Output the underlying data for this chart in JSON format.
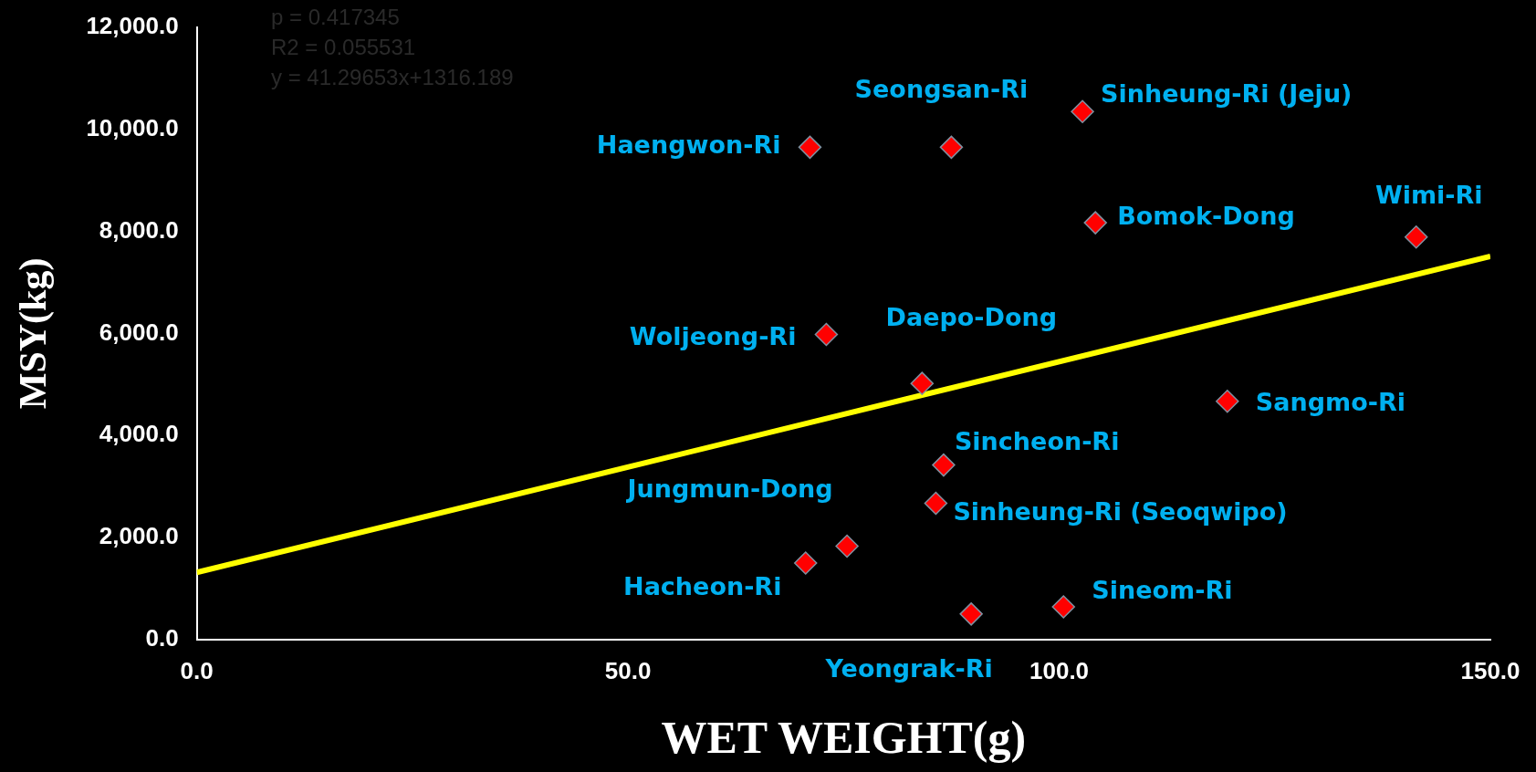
{
  "chart_data": {
    "type": "scatter",
    "xlabel": "WET WEIGHT(g)",
    "ylabel": "MSY(kg)",
    "xlim": [
      0,
      150
    ],
    "ylim": [
      0,
      12000
    ],
    "xticks": [
      {
        "value": 0,
        "label": "0.0"
      },
      {
        "value": 50,
        "label": "50.0"
      },
      {
        "value": 100,
        "label": "100.0"
      },
      {
        "value": 150,
        "label": "150.0"
      }
    ],
    "yticks": [
      {
        "value": 0,
        "label": "0.0"
      },
      {
        "value": 2000,
        "label": "2,000.0"
      },
      {
        "value": 4000,
        "label": "4,000.0"
      },
      {
        "value": 6000,
        "label": "6,000.0"
      },
      {
        "value": 8000,
        "label": "8,000.0"
      },
      {
        "value": 10000,
        "label": "10,000.0"
      },
      {
        "value": 12000,
        "label": "12,000.0"
      }
    ],
    "grid": false,
    "series": [
      {
        "color": "#ff0000",
        "marker": "diamond",
        "x": [
          71.1,
          87.5,
          102.7,
          104.2,
          141.4,
          73.0,
          84.1,
          119.5,
          86.6,
          85.7,
          75.4,
          70.6,
          89.8,
          100.5
        ],
        "values": [
          9650,
          9650,
          10350,
          8170,
          7890,
          5980,
          5020,
          4670,
          3420,
          2670,
          1830,
          1500,
          500,
          640
        ],
        "value_labels": [
          "Haengwon-Ri",
          "Seongsan-Ri",
          "Sinheung-Ri (Jeju)",
          "Bomok-Dong",
          "Wimi-Ri",
          "Woljeong-Ri",
          "Daepo-Dong",
          "Sangmo-Ri",
          "Sincheon-Ri",
          "Sinheung-Ri (Seoqwipo)",
          "Jungmun-Dong",
          "Hacheon-Ri",
          "Yeongrak-Ri",
          "Sineom-Ri"
        ]
      },
      {
        "type": "line",
        "color": "#ffff00",
        "marker": "none",
        "x": [
          0,
          150
        ],
        "values": [
          1316,
          7511
        ]
      }
    ],
    "annotations": [
      "p = 0.417345",
      "R2 = 0.055531",
      "y = 41.29653x+1316.189"
    ]
  }
}
